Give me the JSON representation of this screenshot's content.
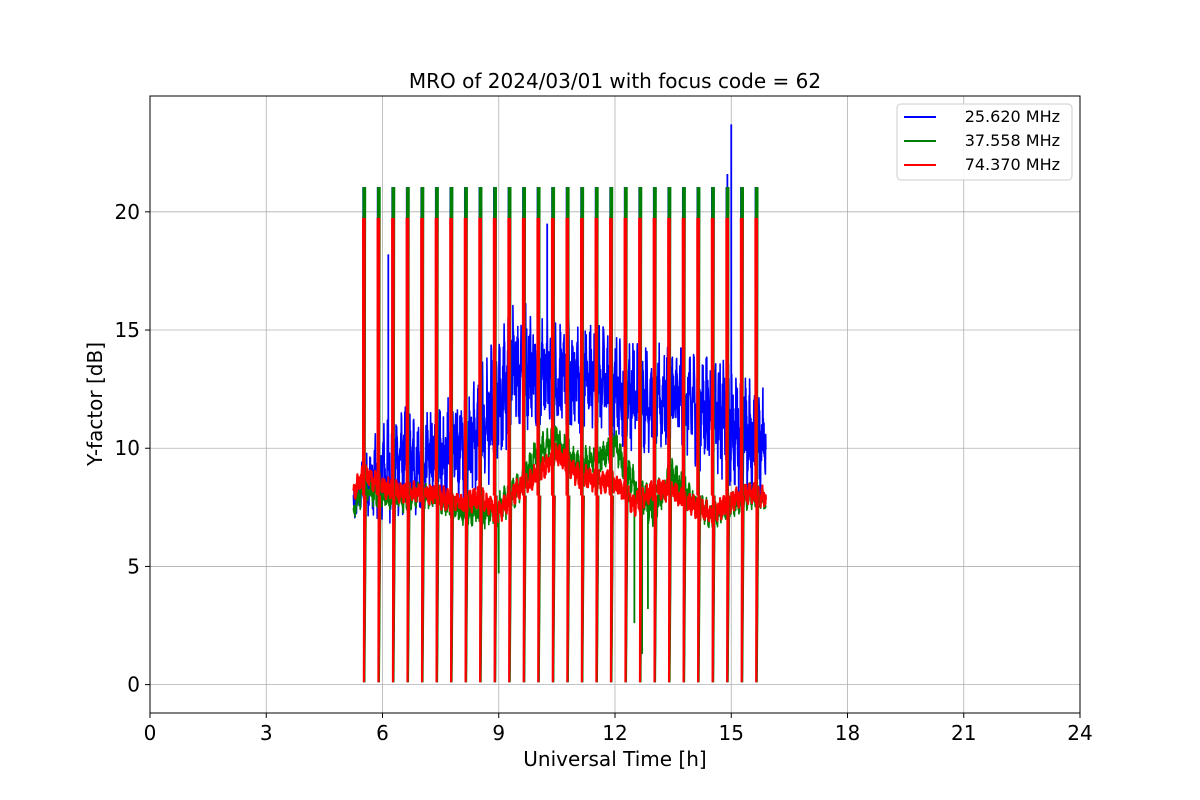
{
  "chart_data": {
    "type": "line",
    "title": "MRO of 2024/03/01 with focus code = 62",
    "xlabel": "Universal Time [h]",
    "ylabel": "Y-factor [dB]",
    "xlim": [
      0,
      24
    ],
    "ylim": [
      -1.2,
      24.9
    ],
    "xticks": [
      0,
      3,
      6,
      9,
      12,
      15,
      18,
      21,
      24
    ],
    "yticks": [
      0,
      5,
      10,
      15,
      20
    ],
    "grid": true,
    "legend_position": "top-right",
    "data_start_h": 5.25,
    "data_end_h": 15.9,
    "calibration_interval_h": 0.375,
    "calibration_first_h": 5.5,
    "calibration_levels": {
      "25.620 MHz": 21.0,
      "37.558 MHz": 21.0,
      "74.370 MHz": 19.7,
      "floor": 0.1
    },
    "series": [
      {
        "name": "25.620 MHz",
        "color": "#0000ff",
        "x": [
          5.25,
          5.5,
          6.0,
          6.5,
          7.0,
          7.5,
          8.0,
          8.5,
          9.0,
          9.5,
          10.0,
          10.5,
          11.0,
          11.5,
          12.0,
          12.5,
          13.0,
          13.5,
          14.0,
          14.5,
          15.0,
          15.5,
          15.9
        ],
        "values": [
          7.5,
          8.4,
          9.0,
          9.5,
          9.3,
          9.8,
          10.0,
          10.6,
          12.0,
          13.5,
          13.4,
          13.0,
          13.0,
          13.0,
          12.6,
          12.3,
          12.1,
          12.2,
          11.8,
          11.6,
          11.0,
          10.2,
          10.6
        ],
        "amplitude": [
          0.6,
          0.8,
          1.5,
          1.6,
          1.5,
          1.5,
          1.6,
          1.8,
          2.0,
          2.0,
          1.8,
          1.7,
          1.7,
          1.6,
          1.6,
          1.6,
          1.6,
          1.6,
          1.7,
          1.8,
          1.8,
          1.8,
          1.6
        ],
        "spikes": [
          {
            "x": 6.15,
            "y": 18.2
          },
          {
            "x": 8.55,
            "y": 20.2
          },
          {
            "x": 9.25,
            "y": 18.3
          },
          {
            "x": 10.25,
            "y": 19.5
          },
          {
            "x": 14.9,
            "y": 21.6
          },
          {
            "x": 15.0,
            "y": 23.7
          }
        ]
      },
      {
        "name": "37.558 MHz",
        "color": "#008000",
        "x": [
          5.25,
          5.5,
          6.0,
          6.5,
          7.0,
          7.5,
          8.0,
          8.5,
          9.0,
          9.5,
          10.0,
          10.5,
          11.0,
          11.5,
          12.0,
          12.5,
          13.0,
          13.5,
          14.0,
          14.5,
          15.0,
          15.5,
          15.9
        ],
        "values": [
          7.4,
          8.2,
          8.0,
          7.8,
          8.1,
          7.8,
          7.3,
          7.2,
          7.4,
          8.3,
          9.8,
          10.4,
          9.2,
          9.5,
          10.2,
          8.3,
          7.5,
          8.9,
          7.8,
          7.1,
          7.6,
          8.0,
          7.8
        ],
        "amplitude": [
          0.3,
          0.4,
          0.4,
          0.4,
          0.4,
          0.4,
          0.4,
          0.4,
          0.5,
          0.5,
          0.5,
          0.5,
          0.5,
          0.5,
          0.5,
          0.6,
          0.6,
          0.5,
          0.4,
          0.4,
          0.4,
          0.4,
          0.3
        ],
        "spikes": [
          {
            "x": 9.0,
            "y": 4.7
          },
          {
            "x": 12.5,
            "y": 2.6
          },
          {
            "x": 12.7,
            "y": 1.3
          },
          {
            "x": 12.85,
            "y": 3.2
          }
        ]
      },
      {
        "name": "74.370 MHz",
        "color": "#ff0000",
        "x": [
          5.25,
          5.5,
          6.0,
          6.5,
          7.0,
          7.5,
          8.0,
          8.5,
          9.0,
          9.5,
          10.0,
          10.5,
          11.0,
          11.5,
          12.0,
          12.5,
          13.0,
          13.5,
          14.0,
          14.5,
          15.0,
          15.5,
          15.9
        ],
        "values": [
          8.1,
          8.9,
          8.4,
          8.1,
          8.2,
          7.9,
          7.7,
          7.9,
          7.3,
          8.3,
          8.9,
          9.8,
          8.9,
          8.6,
          8.6,
          7.6,
          8.3,
          8.2,
          7.6,
          7.2,
          7.8,
          8.1,
          7.9
        ],
        "amplitude": [
          0.3,
          0.35,
          0.35,
          0.35,
          0.35,
          0.35,
          0.35,
          0.35,
          0.35,
          0.35,
          0.35,
          0.35,
          0.35,
          0.35,
          0.35,
          0.35,
          0.35,
          0.35,
          0.35,
          0.35,
          0.35,
          0.35,
          0.3
        ],
        "spikes": []
      }
    ]
  }
}
